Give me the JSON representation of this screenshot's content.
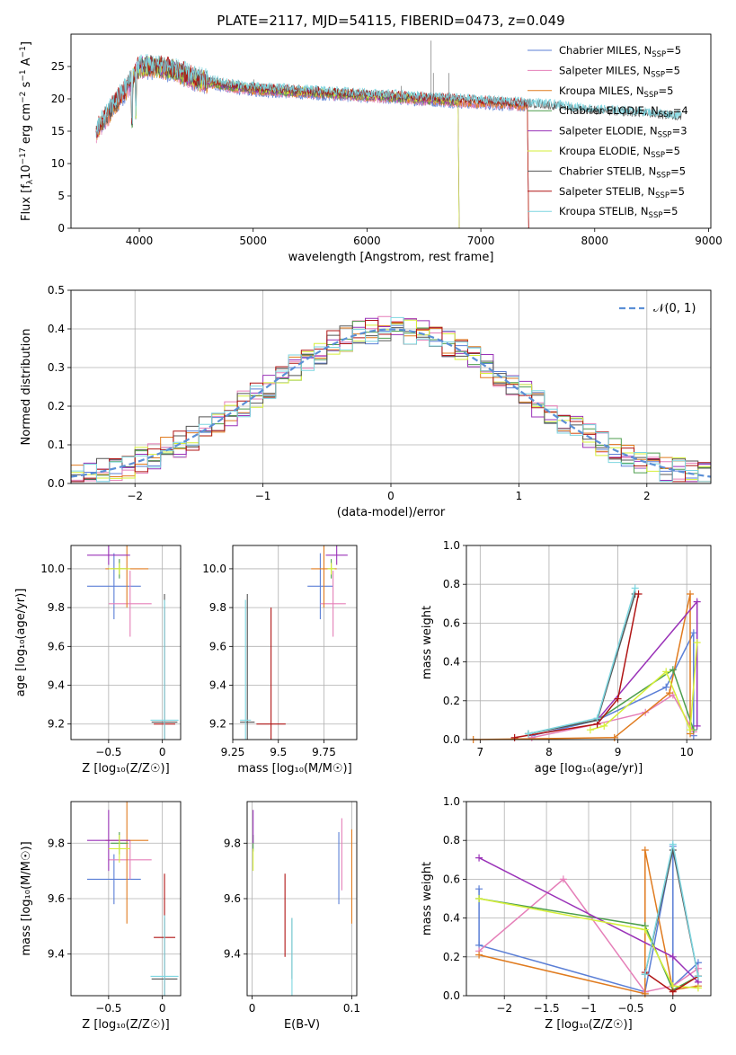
{
  "title": "PLATE=2117, MJD=54115, FIBERID=0473, z=0.049",
  "colors": {
    "Chabrier MILES": "#5b7fd6",
    "Salpeter MILES": "#e57fb8",
    "Kroupa MILES": "#e07b1f",
    "Chabrier ELODIE": "#4d9e4d",
    "Salpeter ELODIE": "#9a32b8",
    "Kroupa ELODIE": "#d6ef3a",
    "Chabrier STELIB": "#555555",
    "Salpeter STELIB": "#b01414",
    "Kroupa STELIB": "#7dd6e0"
  },
  "chart_data": [
    {
      "id": "spectrum",
      "type": "line",
      "xlabel": "wavelength [Angstrom, rest frame]",
      "ylabel_text": "Flux [f",
      "ylabel_sub": "λ",
      "ylabel_mid": "10",
      "ylabel_sup1": "−17",
      "ylabel_mid2": " erg cm",
      "ylabel_sup2": "−2",
      "ylabel_mid3": " s",
      "ylabel_sup3": "−1",
      "ylabel_mid4": " A",
      "ylabel_sup4": "−1",
      "ylabel_end": "]",
      "xlim": [
        3400,
        9020
      ],
      "ylim": [
        0,
        30
      ],
      "xticks": [
        4000,
        5000,
        6000,
        7000,
        8000,
        9000
      ],
      "yticks": [
        0,
        5,
        10,
        15,
        20,
        25
      ],
      "continuum": [
        [
          3620,
          15
        ],
        [
          3700,
          17
        ],
        [
          3800,
          19.5
        ],
        [
          3900,
          22
        ],
        [
          4000,
          25
        ],
        [
          4100,
          25
        ],
        [
          4300,
          24.5
        ],
        [
          4500,
          23
        ],
        [
          4800,
          22
        ],
        [
          5000,
          21.5
        ],
        [
          5500,
          21
        ],
        [
          6000,
          20.5
        ],
        [
          6500,
          20
        ],
        [
          7000,
          19.5
        ],
        [
          7500,
          19
        ],
        [
          8000,
          18
        ],
        [
          8500,
          17.5
        ],
        [
          8760,
          17
        ]
      ],
      "legend": [
        {
          "prefix": "Chabrier MILES, N",
          "sub": "SSP",
          "suffix": "=5"
        },
        {
          "prefix": "Salpeter MILES, N",
          "sub": "SSP",
          "suffix": "=5"
        },
        {
          "prefix": "Kroupa MILES, N",
          "sub": "SSP",
          "suffix": "=5"
        },
        {
          "prefix": "Chabrier ELODIE, N",
          "sub": "SSP",
          "suffix": "=4"
        },
        {
          "prefix": "Salpeter ELODIE, N",
          "sub": "SSP",
          "suffix": "=3"
        },
        {
          "prefix": "Kroupa ELODIE, N",
          "sub": "SSP",
          "suffix": "=5"
        },
        {
          "prefix": "Chabrier STELIB, N",
          "sub": "SSP",
          "suffix": "=5"
        },
        {
          "prefix": "Salpeter STELIB, N",
          "sub": "SSP",
          "suffix": "=5"
        },
        {
          "prefix": "Kroupa STELIB, N",
          "sub": "SSP",
          "suffix": "=5"
        }
      ],
      "series_end": {
        "Chabrier MILES": 7410,
        "Salpeter MILES": 7410,
        "Kroupa MILES": 7410,
        "Chabrier ELODIE": 6800,
        "Salpeter ELODIE": 6800,
        "Kroupa ELODIE": 6800,
        "Chabrier STELIB": 8760,
        "Salpeter STELIB": 7410,
        "Kroupa STELIB": 8760
      },
      "series_start": {
        "Chabrier MILES": 3620,
        "Salpeter MILES": 3620,
        "Kroupa MILES": 3620,
        "Chabrier ELODIE": 3920,
        "Salpeter ELODIE": 3920,
        "Kroupa ELODIE": 3920,
        "Chabrier STELIB": 3620,
        "Salpeter STELIB": 3620,
        "Kroupa STELIB": 3620
      }
    },
    {
      "id": "residuals",
      "type": "step-histogram",
      "xlabel": "(data-model)/error",
      "ylabel": "Normed distribution",
      "xlim": [
        -2.5,
        2.5
      ],
      "ylim": [
        0,
        0.5
      ],
      "xticks": [
        -2,
        -1,
        0,
        1,
        2
      ],
      "yticks": [
        0.0,
        0.1,
        0.2,
        0.3,
        0.4,
        0.5
      ],
      "bin_width": 0.1,
      "legend": "𝒩(0, 1)",
      "gaussian_color": "#5b8fd6"
    },
    {
      "id": "age_vs_Z",
      "type": "errorbar",
      "xlabel": "Z [log₁₀(Z/Z☉)]",
      "ylabel": "age  [log₁₀(age/yr)]",
      "xlim": [
        -0.85,
        0.17
      ],
      "ylim": [
        9.12,
        10.12
      ],
      "xticks": [
        -0.5,
        0.0
      ],
      "yticks": [
        9.2,
        9.4,
        9.6,
        9.8,
        10.0
      ],
      "points": [
        {
          "m": "Chabrier MILES",
          "x": -0.45,
          "xe": 0.25,
          "y": 9.91,
          "ye": 0.17
        },
        {
          "m": "Salpeter MILES",
          "x": -0.3,
          "xe": 0.2,
          "y": 9.82,
          "ye": 0.17
        },
        {
          "m": "Kroupa MILES",
          "x": -0.33,
          "xe": 0.2,
          "y": 10.0,
          "ye": 0.2
        },
        {
          "m": "Chabrier ELODIE",
          "x": -0.4,
          "xe": 0.08,
          "y": 10.0,
          "ye": 0.05
        },
        {
          "m": "Salpeter ELODIE",
          "x": -0.5,
          "xe": 0.2,
          "y": 10.07,
          "ye": 0.05
        },
        {
          "m": "Kroupa ELODIE",
          "x": -0.4,
          "xe": 0.1,
          "y": 10.0,
          "ye": 0.03
        },
        {
          "m": "Chabrier STELIB",
          "x": 0.02,
          "xe": 0.12,
          "y": 9.21,
          "ye": 0.66
        },
        {
          "m": "Salpeter STELIB",
          "x": 0.02,
          "xe": 0.1,
          "y": 9.2,
          "ye": 0.6
        },
        {
          "m": "Kroupa STELIB",
          "x": 0.02,
          "xe": 0.13,
          "y": 9.22,
          "ye": 0.62
        }
      ]
    },
    {
      "id": "age_vs_mass",
      "type": "errorbar",
      "xlabel": "mass [log₁₀(M/M☉)]",
      "ylabel": "",
      "xlim": [
        9.25,
        9.93
      ],
      "ylim": [
        9.12,
        10.12
      ],
      "xticks": [
        9.25,
        9.5,
        9.75
      ],
      "yticks": [
        9.2,
        9.4,
        9.6,
        9.8,
        10.0
      ],
      "points": [
        {
          "m": "Chabrier MILES",
          "x": 9.73,
          "xe": 0.07,
          "y": 9.91,
          "ye": 0.17
        },
        {
          "m": "Salpeter MILES",
          "x": 9.8,
          "xe": 0.07,
          "y": 9.82,
          "ye": 0.17
        },
        {
          "m": "Kroupa MILES",
          "x": 9.75,
          "xe": 0.07,
          "y": 10.0,
          "ye": 0.2
        },
        {
          "m": "Chabrier ELODIE",
          "x": 9.79,
          "xe": 0.02,
          "y": 10.0,
          "ye": 0.05
        },
        {
          "m": "Salpeter ELODIE",
          "x": 9.82,
          "xe": 0.06,
          "y": 10.07,
          "ye": 0.05
        },
        {
          "m": "Kroupa ELODIE",
          "x": 9.79,
          "xe": 0.02,
          "y": 10.0,
          "ye": 0.03
        },
        {
          "m": "Chabrier STELIB",
          "x": 9.33,
          "xe": 0.04,
          "y": 9.21,
          "ye": 0.66
        },
        {
          "m": "Salpeter STELIB",
          "x": 9.46,
          "xe": 0.08,
          "y": 9.2,
          "ye": 0.6
        },
        {
          "m": "Kroupa STELIB",
          "x": 9.32,
          "xe": 0.03,
          "y": 9.22,
          "ye": 0.62
        }
      ]
    },
    {
      "id": "weight_vs_age",
      "type": "line",
      "xlabel": "age  [log₁₀(age/yr)]",
      "ylabel": "mass weight",
      "xlim": [
        6.8,
        10.35
      ],
      "ylim": [
        0,
        1.0
      ],
      "xticks": [
        7,
        8,
        9,
        10
      ],
      "yticks": [
        0.0,
        0.2,
        0.4,
        0.6,
        0.8,
        1.0
      ],
      "series": [
        {
          "name": "Chabrier MILES",
          "x": [
            7.75,
            8.7,
            9.7,
            10.1,
            10.1
          ],
          "y": [
            0.02,
            0.1,
            0.27,
            0.55,
            0.02
          ]
        },
        {
          "name": "Salpeter MILES",
          "x": [
            7.75,
            8.7,
            9.4,
            9.8,
            10.1
          ],
          "y": [
            0.01,
            0.08,
            0.14,
            0.23,
            0.04
          ]
        },
        {
          "name": "Kroupa MILES",
          "x": [
            6.9,
            8.95,
            9.75,
            10.05,
            10.05
          ],
          "y": [
            0.0,
            0.01,
            0.24,
            0.75,
            0.03
          ]
        },
        {
          "name": "Chabrier ELODIE",
          "x": [
            7.7,
            8.7,
            9.8,
            10.1
          ],
          "y": [
            0.03,
            0.1,
            0.36,
            0.05
          ]
        },
        {
          "name": "Salpeter ELODIE",
          "x": [
            8.7,
            10.15,
            10.15
          ],
          "y": [
            0.1,
            0.71,
            0.07
          ]
        },
        {
          "name": "Kroupa ELODIE",
          "x": [
            8.6,
            8.8,
            9.7,
            10.05,
            10.15
          ],
          "y": [
            0.05,
            0.07,
            0.35,
            0.05,
            0.5
          ]
        },
        {
          "name": "Chabrier STELIB",
          "x": [
            7.7,
            8.7,
            9.25
          ],
          "y": [
            0.03,
            0.1,
            0.75
          ]
        },
        {
          "name": "Salpeter STELIB",
          "x": [
            7.5,
            8.7,
            9.0,
            9.3
          ],
          "y": [
            0.01,
            0.08,
            0.21,
            0.75
          ]
        },
        {
          "name": "Kroupa STELIB",
          "x": [
            7.7,
            8.7,
            9.25
          ],
          "y": [
            0.03,
            0.11,
            0.78
          ]
        }
      ]
    },
    {
      "id": "mass_vs_Z",
      "type": "errorbar",
      "xlabel": "Z [log₁₀(Z/Z☉)]",
      "ylabel": "mass [log₁₀(M/M☉)]",
      "xlim": [
        -0.85,
        0.17
      ],
      "ylim": [
        9.25,
        9.95
      ],
      "xticks": [
        -0.5,
        0.0
      ],
      "yticks": [
        9.4,
        9.6,
        9.8
      ],
      "points": [
        {
          "m": "Chabrier MILES",
          "x": -0.45,
          "xe": 0.25,
          "y": 9.67,
          "ye": 0.09
        },
        {
          "m": "Salpeter MILES",
          "x": -0.3,
          "xe": 0.2,
          "y": 9.74,
          "ye": 0.07
        },
        {
          "m": "Kroupa MILES",
          "x": -0.33,
          "xe": 0.2,
          "y": 9.81,
          "ye": 0.3
        },
        {
          "m": "Chabrier ELODIE",
          "x": -0.4,
          "xe": 0.08,
          "y": 9.8,
          "ye": 0.04
        },
        {
          "m": "Salpeter ELODIE",
          "x": -0.5,
          "xe": 0.2,
          "y": 9.81,
          "ye": 0.11
        },
        {
          "m": "Kroupa ELODIE",
          "x": -0.4,
          "xe": 0.1,
          "y": 9.78,
          "ye": 0.05
        },
        {
          "m": "Chabrier STELIB",
          "x": 0.02,
          "xe": 0.12,
          "y": 9.31,
          "ye": 0.22
        },
        {
          "m": "Salpeter STELIB",
          "x": 0.02,
          "xe": 0.1,
          "y": 9.46,
          "ye": 0.23
        },
        {
          "m": "Kroupa STELIB",
          "x": 0.02,
          "xe": 0.13,
          "y": 9.32,
          "ye": 0.22
        }
      ]
    },
    {
      "id": "mass_vs_EBV",
      "type": "errorbar",
      "xlabel": "E(B-V)",
      "ylabel": "",
      "xlim": [
        -0.005,
        0.105
      ],
      "ylim": [
        9.25,
        9.95
      ],
      "xticks": [
        0.0,
        0.1
      ],
      "yticks": [
        9.4,
        9.6,
        9.8
      ],
      "points": [
        {
          "m": "Chabrier MILES",
          "x": 0.087,
          "xe": 0,
          "y": 9.71,
          "ye": 0.13
        },
        {
          "m": "Salpeter MILES",
          "x": 0.09,
          "xe": 0,
          "y": 9.76,
          "ye": 0.13
        },
        {
          "m": "Kroupa MILES",
          "x": 0.1,
          "xe": 0,
          "y": 9.68,
          "ye": 0.17
        },
        {
          "m": "Chabrier ELODIE",
          "x": 0.001,
          "xe": 0,
          "y": 9.8,
          "ye": 0.03
        },
        {
          "m": "Salpeter ELODIE",
          "x": 0.001,
          "xe": 0,
          "y": 9.86,
          "ye": 0.06
        },
        {
          "m": "Kroupa ELODIE",
          "x": 0.001,
          "xe": 0,
          "y": 9.74,
          "ye": 0.04
        },
        {
          "m": "Chabrier STELIB",
          "x": 0.04,
          "xe": 0,
          "y": 9.42,
          "ye": 0.11
        },
        {
          "m": "Salpeter STELIB",
          "x": 0.033,
          "xe": 0,
          "y": 9.54,
          "ye": 0.15
        },
        {
          "m": "Kroupa STELIB",
          "x": 0.04,
          "xe": 0,
          "y": 9.36,
          "ye": 0.17
        }
      ]
    },
    {
      "id": "weight_vs_Z",
      "type": "line",
      "xlabel": "Z [log₁₀(Z/Z☉)]",
      "ylabel": "mass weight",
      "xlim": [
        -2.45,
        0.45
      ],
      "ylim": [
        0,
        1.0
      ],
      "xticks": [
        -2.0,
        -1.5,
        -1.0,
        -0.5,
        0.0
      ],
      "yticks": [
        0.0,
        0.2,
        0.4,
        0.6,
        0.8,
        1.0
      ],
      "series": [
        {
          "name": "Chabrier MILES",
          "x": [
            -2.3,
            -2.3,
            -0.33,
            0.0,
            0.0,
            0.3
          ],
          "y": [
            0.55,
            0.26,
            0.02,
            0.77,
            0.05,
            0.17
          ]
        },
        {
          "name": "Salpeter MILES",
          "x": [
            -2.3,
            -1.3,
            -0.33,
            0.0,
            0.3
          ],
          "y": [
            0.23,
            0.6,
            0.02,
            0.05,
            0.14
          ]
        },
        {
          "name": "Kroupa MILES",
          "x": [
            -2.3,
            -0.33,
            -0.33,
            0.0,
            0.3
          ],
          "y": [
            0.21,
            0.01,
            0.75,
            0.03,
            0.05
          ]
        },
        {
          "name": "Chabrier ELODIE",
          "x": [
            -2.3,
            -0.33,
            0.0,
            0.3
          ],
          "y": [
            0.5,
            0.36,
            0.03,
            0.1
          ]
        },
        {
          "name": "Salpeter ELODIE",
          "x": [
            -2.3,
            0.0,
            0.3
          ],
          "y": [
            0.71,
            0.2,
            0.07
          ]
        },
        {
          "name": "Kroupa ELODIE",
          "x": [
            -2.3,
            -0.33,
            0.0,
            0.3
          ],
          "y": [
            0.5,
            0.34,
            0.05,
            0.04
          ]
        },
        {
          "name": "Chabrier STELIB",
          "x": [
            -0.33,
            0.0,
            0.3
          ],
          "y": [
            0.11,
            0.75,
            0.1
          ]
        },
        {
          "name": "Salpeter STELIB",
          "x": [
            -0.33,
            0.0,
            0.3
          ],
          "y": [
            0.12,
            0.02,
            0.1
          ]
        },
        {
          "name": "Kroupa STELIB",
          "x": [
            -0.33,
            0.0,
            0.3
          ],
          "y": [
            0.11,
            0.78,
            0.1
          ]
        }
      ]
    }
  ]
}
